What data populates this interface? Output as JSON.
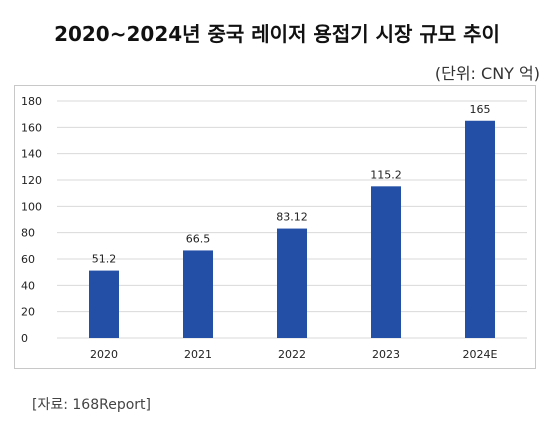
{
  "title": "2020~2024년 중국 레이저 용접기 시장 규모 추이",
  "unit_label": "(단위: CNY 억)",
  "source": "[자료: 168Report]",
  "colors": {
    "bar": "#2350a6",
    "grid": "#d9d9d9",
    "text": "#222222"
  },
  "chart_data": {
    "type": "bar",
    "title": "2020~2024년 중국 레이저 용접기 시장 규모 추이",
    "xlabel": "",
    "ylabel": "",
    "categories": [
      "2020",
      "2021",
      "2022",
      "2023",
      "2024E"
    ],
    "values": [
      51.2,
      66.5,
      83.12,
      115.2,
      165
    ],
    "value_labels": [
      "51.2",
      "66.5",
      "83.12",
      "115.2",
      "165"
    ],
    "ylim": [
      0,
      180
    ],
    "yticks": [
      0,
      20,
      40,
      60,
      80,
      100,
      120,
      140,
      160,
      180
    ],
    "grid": true,
    "legend": "none"
  }
}
